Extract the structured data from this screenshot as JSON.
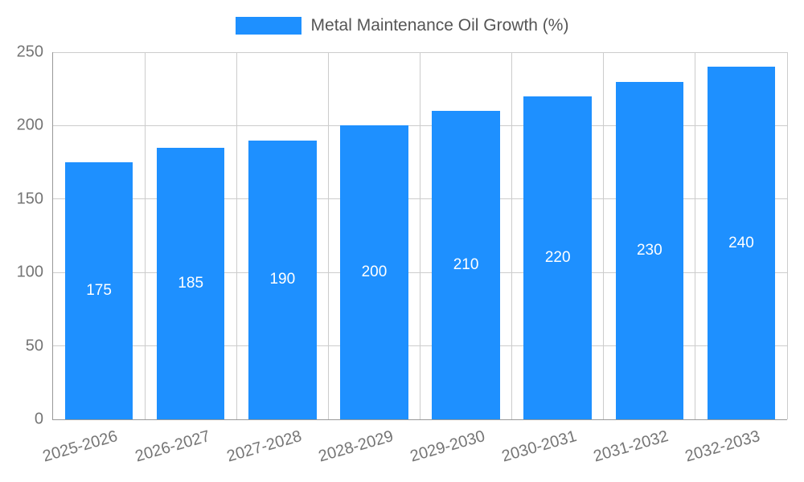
{
  "colors": {
    "bar": "#1E90FF",
    "grid": "#cccccc",
    "axis": "#999999",
    "tick_text": "#757575",
    "value_text": "#ffffff",
    "legend_text": "#555555"
  },
  "chart_data": {
    "type": "bar",
    "title": "Metal Maintenance Oil Growth (%)",
    "categories": [
      "2025-2026",
      "2026-2027",
      "2027-2028",
      "2028-2029",
      "2029-2030",
      "2030-2031",
      "2031-2032",
      "2032-2033"
    ],
    "values": [
      175,
      185,
      190,
      200,
      210,
      220,
      230,
      240
    ],
    "xlabel": "",
    "ylabel": "",
    "ylim": [
      0,
      250
    ],
    "ytick_step": 50,
    "ytick_labels": [
      "0",
      "50",
      "100",
      "150",
      "200",
      "250"
    ],
    "grid": true,
    "legend_position": "top",
    "value_labels_shown": true,
    "value_label_position": "center-of-bar"
  }
}
